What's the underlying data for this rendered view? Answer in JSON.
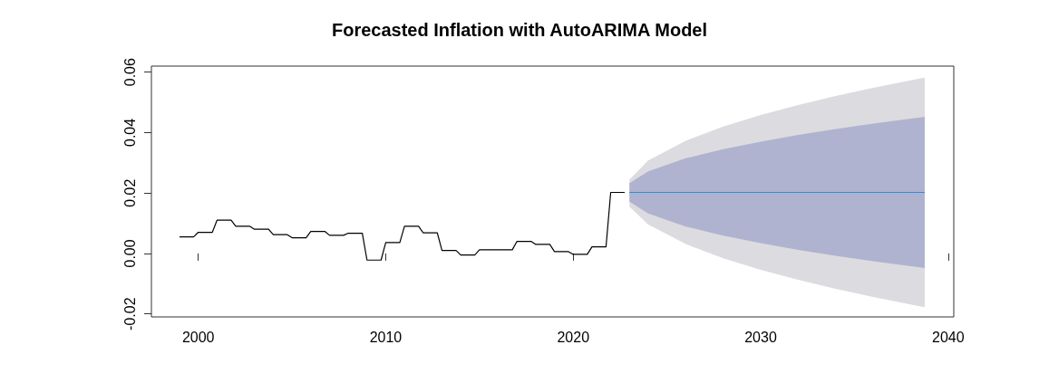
{
  "chart_data": {
    "type": "line",
    "title": "Forecasted Inflation with AutoARIMA Model",
    "xlim": [
      1997.5,
      2040.3
    ],
    "xticks": [
      2000,
      2010,
      2020,
      2030,
      2040
    ],
    "ylim": [
      -0.021,
      0.062
    ],
    "yticks": [
      {
        "value": -0.02,
        "label": "-0.02"
      },
      {
        "value": 0,
        "label": "0.00"
      },
      {
        "value": 0.02,
        "label": "0.02"
      },
      {
        "value": 0.04,
        "label": "0.04"
      },
      {
        "value": 0.06,
        "label": "0.06"
      }
    ],
    "grid": false,
    "marker": "none",
    "line_style": "solid",
    "series": [
      {
        "color": "#000000",
        "x": [
          1999,
          1999.75,
          2000,
          2000.75,
          2001,
          2001.75,
          2002,
          2002.75,
          2003,
          2003.75,
          2004,
          2004.75,
          2005,
          2005.75,
          2006,
          2006.75,
          2007,
          2007.75,
          2008,
          2008.75,
          2009,
          2009.75,
          2010,
          2010.75,
          2011,
          2011.75,
          2012,
          2012.75,
          2013,
          2013.75,
          2014,
          2014.75,
          2015,
          2015.75,
          2016,
          2016.75,
          2017,
          2017.75,
          2018,
          2018.75,
          2019,
          2019.75,
          2020,
          2020.75,
          2021,
          2021.75,
          2022,
          2022.75
        ],
        "values": [
          0.0055,
          0.0055,
          0.007,
          0.007,
          0.011,
          0.011,
          0.009,
          0.009,
          0.008,
          0.008,
          0.0062,
          0.0062,
          0.0052,
          0.0052,
          0.0073,
          0.0073,
          0.006,
          0.006,
          0.0067,
          0.0067,
          -0.0022,
          -0.0022,
          0.0036,
          0.0036,
          0.009,
          0.009,
          0.0068,
          0.0068,
          0.001,
          0.001,
          -0.0005,
          -0.0005,
          0.0012,
          0.0012,
          0.0012,
          0.0012,
          0.004,
          0.004,
          0.003,
          0.003,
          0.0006,
          0.0006,
          -0.0003,
          -0.0003,
          0.0022,
          0.0022,
          0.0202,
          0.0202
        ]
      },
      {
        "color": "#dcdbe0",
        "x": [
          2023,
          2024,
          2026,
          2028,
          2030,
          2032,
          2034,
          2036,
          2038.75
        ],
        "values": [
          null,
          null,
          null,
          null,
          null,
          null,
          null,
          null,
          null
        ],
        "lower": [
          0.0155,
          0.0096,
          0.0031,
          -0.0016,
          -0.0054,
          -0.0087,
          -0.0117,
          -0.0144,
          -0.0178
        ],
        "upper": [
          0.0245,
          0.0308,
          0.0373,
          0.042,
          0.0458,
          0.0491,
          0.0521,
          0.0548,
          0.0582
        ]
      },
      {
        "color": "#2e8fd8",
        "x": [
          2023,
          2024,
          2026,
          2028,
          2030,
          2032,
          2034,
          2036,
          2038.75
        ],
        "values": [
          0.0202,
          0.0202,
          0.0202,
          0.0202,
          0.0202,
          0.0202,
          0.0202,
          0.0202,
          0.0202
        ],
        "lower": [
          0.0171,
          0.0132,
          0.0089,
          0.0059,
          0.0034,
          0.0012,
          -0.0008,
          -0.0026,
          -0.0048
        ],
        "upper": [
          0.0233,
          0.0272,
          0.0315,
          0.0345,
          0.037,
          0.0392,
          0.0412,
          0.043,
          0.0452
        ]
      }
    ]
  }
}
